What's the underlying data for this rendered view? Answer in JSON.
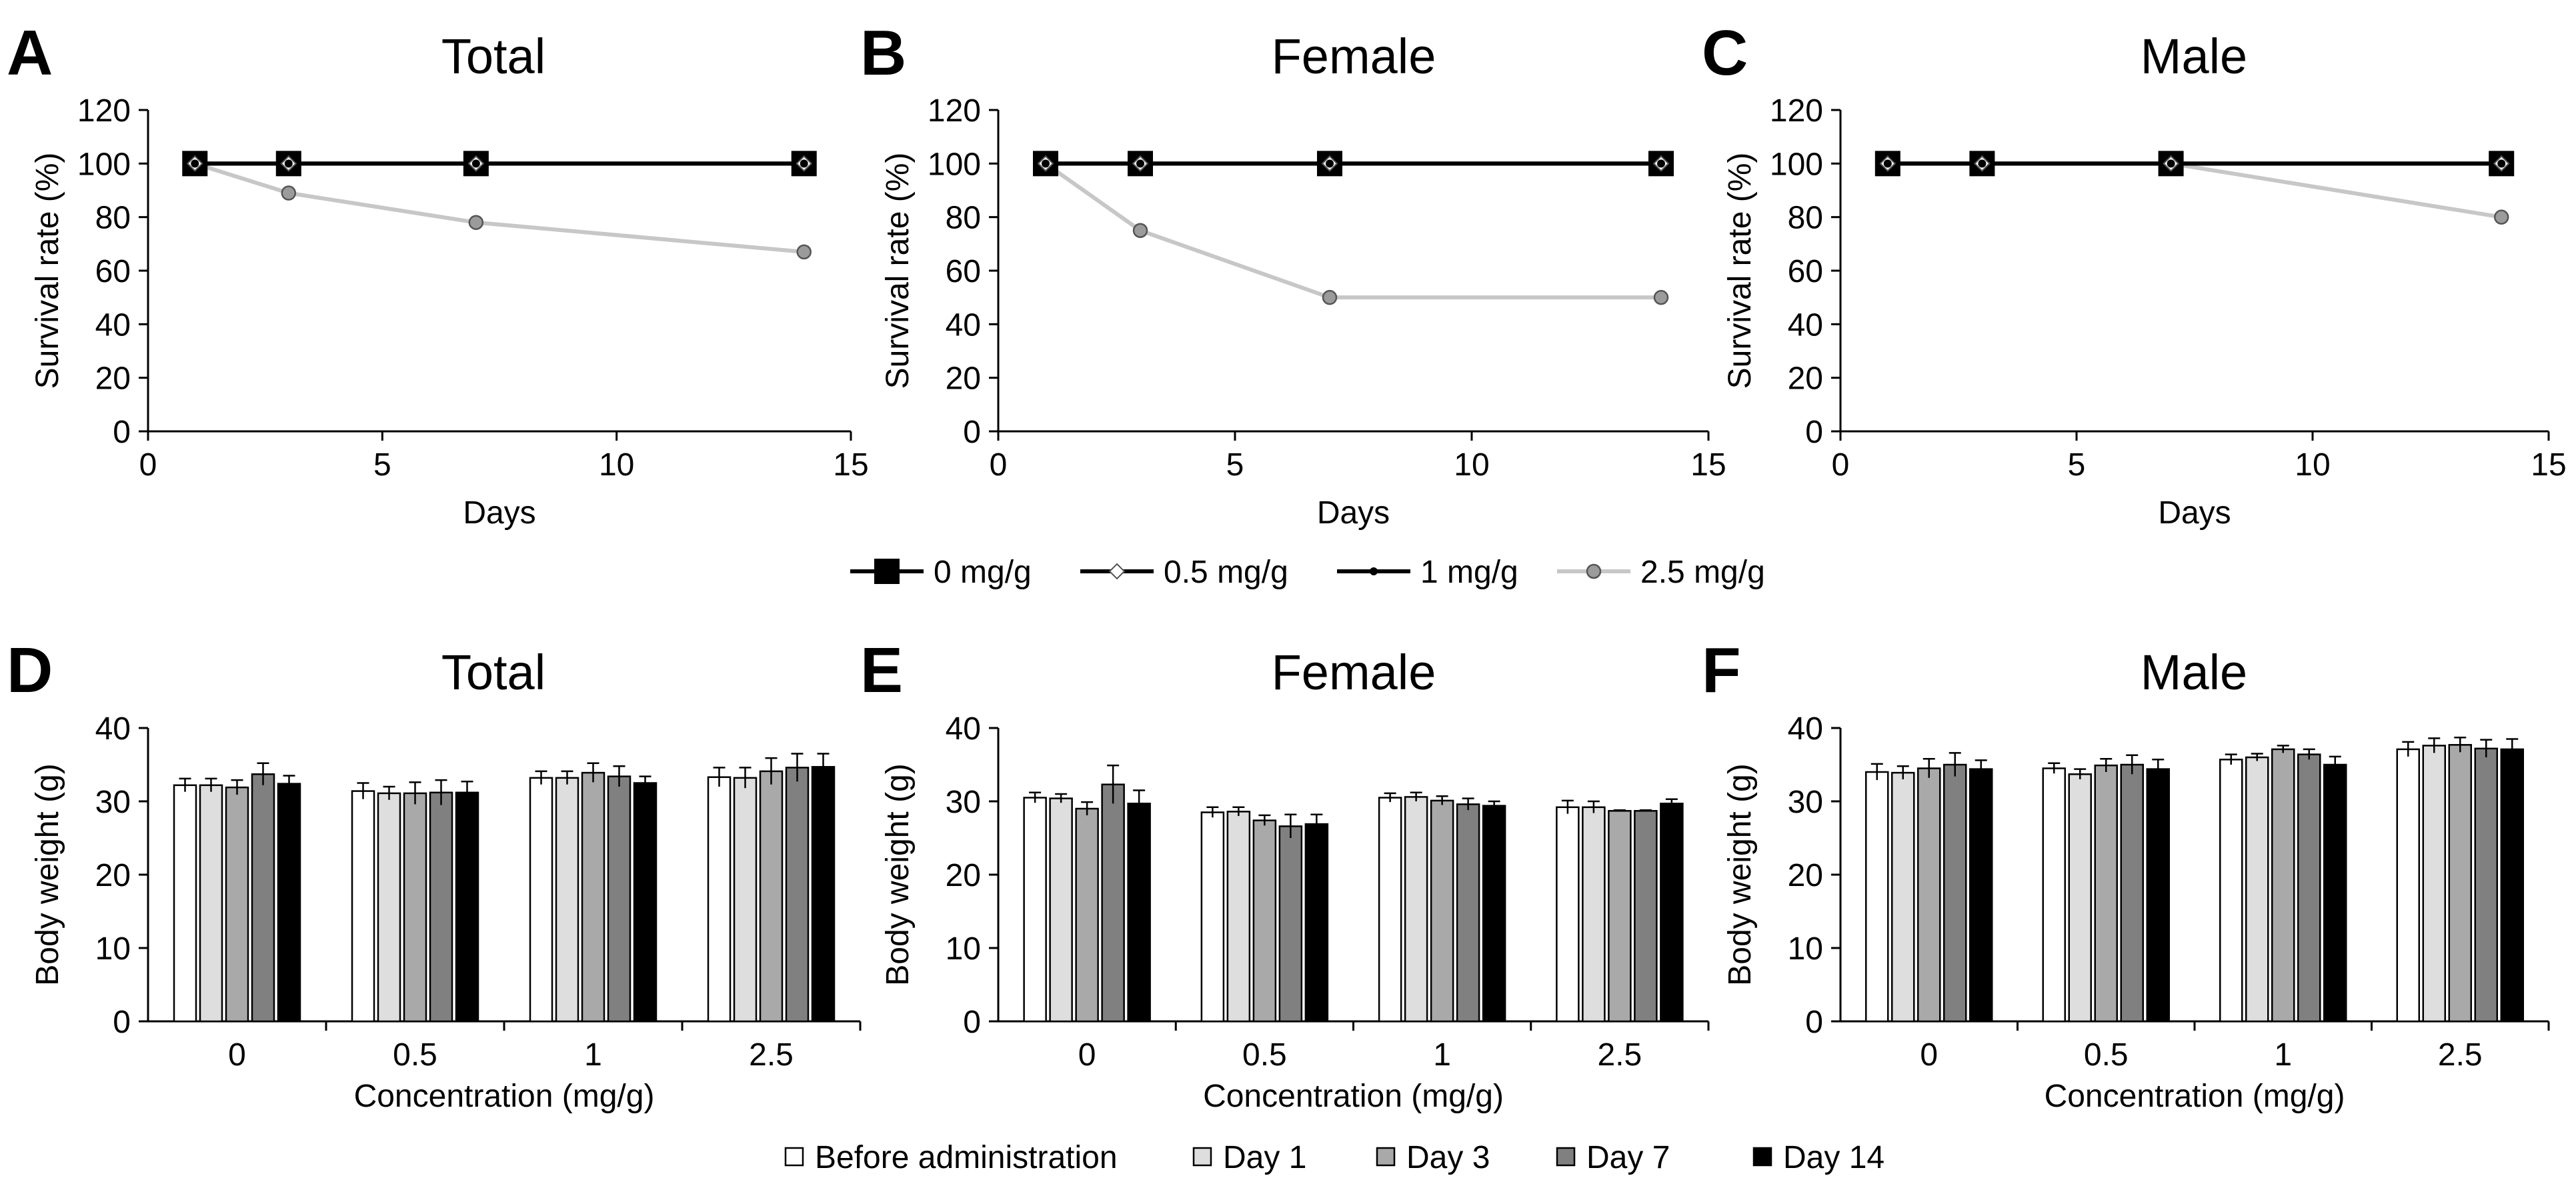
{
  "chart_data": [
    {
      "panel": "A",
      "type": "line",
      "title": "Total",
      "xlabel": "Days",
      "ylabel": "Survival rate (%)",
      "xlim": [
        0,
        15
      ],
      "ylim": [
        0,
        120
      ],
      "xticks": [
        0,
        5,
        10,
        15
      ],
      "yticks": [
        0,
        20,
        40,
        60,
        80,
        100,
        120
      ],
      "x": [
        1,
        3,
        7,
        14
      ],
      "series": [
        {
          "name": "0 mg/g",
          "values": [
            100,
            100,
            100,
            100
          ]
        },
        {
          "name": "0.5 mg/g",
          "values": [
            100,
            100,
            100,
            100
          ]
        },
        {
          "name": "1 mg/g",
          "values": [
            100,
            100,
            100,
            100
          ]
        },
        {
          "name": "2.5 mg/g",
          "values": [
            100,
            89,
            78,
            67
          ]
        }
      ]
    },
    {
      "panel": "B",
      "type": "line",
      "title": "Female",
      "xlabel": "Days",
      "ylabel": "Survival rate (%)",
      "xlim": [
        0,
        15
      ],
      "ylim": [
        0,
        120
      ],
      "xticks": [
        0,
        5,
        10,
        15
      ],
      "yticks": [
        0,
        20,
        40,
        60,
        80,
        100,
        120
      ],
      "x": [
        1,
        3,
        7,
        14
      ],
      "series": [
        {
          "name": "0 mg/g",
          "values": [
            100,
            100,
            100,
            100
          ]
        },
        {
          "name": "0.5 mg/g",
          "values": [
            100,
            100,
            100,
            100
          ]
        },
        {
          "name": "1 mg/g",
          "values": [
            100,
            100,
            100,
            100
          ]
        },
        {
          "name": "2.5 mg/g",
          "values": [
            100,
            75,
            50,
            50
          ]
        }
      ]
    },
    {
      "panel": "C",
      "type": "line",
      "title": "Male",
      "xlabel": "Days",
      "ylabel": "Survival rate (%)",
      "xlim": [
        0,
        15
      ],
      "ylim": [
        0,
        120
      ],
      "xticks": [
        0,
        5,
        10,
        15
      ],
      "yticks": [
        0,
        20,
        40,
        60,
        80,
        100,
        120
      ],
      "x": [
        1,
        3,
        7,
        14
      ],
      "series": [
        {
          "name": "0 mg/g",
          "values": [
            100,
            100,
            100,
            100
          ]
        },
        {
          "name": "0.5 mg/g",
          "values": [
            100,
            100,
            100,
            100
          ]
        },
        {
          "name": "1 mg/g",
          "values": [
            100,
            100,
            100,
            100
          ]
        },
        {
          "name": "2.5 mg/g",
          "values": [
            100,
            100,
            100,
            80
          ]
        }
      ]
    },
    {
      "panel": "D",
      "type": "bar",
      "title": "Total",
      "xlabel": "Concentration (mg/g)",
      "ylabel": "Body weight (g)",
      "ylim": [
        0,
        40
      ],
      "yticks": [
        0,
        10,
        20,
        30,
        40
      ],
      "categories": [
        "0",
        "0.5",
        "1",
        "2.5"
      ],
      "series": [
        {
          "name": "Before administration",
          "values": [
            32.2,
            31.4,
            33.2,
            33.3
          ],
          "errors": [
            0.9,
            1.1,
            0.9,
            1.3
          ]
        },
        {
          "name": "Day 1",
          "values": [
            32.2,
            31.1,
            33.2,
            33.2
          ],
          "errors": [
            0.9,
            0.9,
            0.9,
            1.4
          ]
        },
        {
          "name": "Day 3",
          "values": [
            31.9,
            31.1,
            33.9,
            34.1
          ],
          "errors": [
            1.0,
            1.5,
            1.3,
            1.8
          ]
        },
        {
          "name": "Day 7",
          "values": [
            33.7,
            31.2,
            33.4,
            34.6
          ],
          "errors": [
            1.5,
            1.7,
            1.4,
            1.9
          ]
        },
        {
          "name": "Day 14",
          "values": [
            32.4,
            31.2,
            32.5,
            34.7
          ],
          "errors": [
            1.1,
            1.5,
            0.9,
            1.8
          ]
        }
      ]
    },
    {
      "panel": "E",
      "type": "bar",
      "title": "Female",
      "xlabel": "Concentration (mg/g)",
      "ylabel": "Body weight (g)",
      "ylim": [
        0,
        40
      ],
      "yticks": [
        0,
        10,
        20,
        30,
        40
      ],
      "categories": [
        "0",
        "0.5",
        "1",
        "2.5"
      ],
      "series": [
        {
          "name": "Before administration",
          "values": [
            30.5,
            28.5,
            30.5,
            29.2
          ],
          "errors": [
            0.7,
            0.7,
            0.6,
            0.9
          ]
        },
        {
          "name": "Day 1",
          "values": [
            30.4,
            28.6,
            30.6,
            29.2
          ],
          "errors": [
            0.6,
            0.6,
            0.6,
            0.8
          ]
        },
        {
          "name": "Day 3",
          "values": [
            29.0,
            27.4,
            30.1,
            28.7
          ],
          "errors": [
            0.9,
            0.7,
            0.6,
            0.1
          ]
        },
        {
          "name": "Day 7",
          "values": [
            32.3,
            26.6,
            29.6,
            28.7
          ],
          "errors": [
            2.6,
            1.6,
            0.8,
            0.1
          ]
        },
        {
          "name": "Day 14",
          "values": [
            29.7,
            26.9,
            29.4,
            29.7
          ],
          "errors": [
            1.8,
            1.3,
            0.6,
            0.6
          ]
        }
      ]
    },
    {
      "panel": "F",
      "type": "bar",
      "title": "Male",
      "xlabel": "Concentration (mg/g)",
      "ylabel": "Body weight (g)",
      "ylim": [
        0,
        40
      ],
      "yticks": [
        0,
        10,
        20,
        30,
        40
      ],
      "categories": [
        "0",
        "0.5",
        "1",
        "2.5"
      ],
      "series": [
        {
          "name": "Before administration",
          "values": [
            34.0,
            34.5,
            35.7,
            37.1
          ],
          "errors": [
            1.1,
            0.7,
            0.7,
            1.0
          ]
        },
        {
          "name": "Day 1",
          "values": [
            33.9,
            33.7,
            36.0,
            37.6
          ],
          "errors": [
            0.9,
            0.7,
            0.5,
            1.0
          ]
        },
        {
          "name": "Day 3",
          "values": [
            34.5,
            34.9,
            37.1,
            37.7
          ],
          "errors": [
            1.3,
            0.9,
            0.5,
            1.0
          ]
        },
        {
          "name": "Day 7",
          "values": [
            35.0,
            35.0,
            36.4,
            37.2
          ],
          "errors": [
            1.6,
            1.3,
            0.7,
            1.2
          ]
        },
        {
          "name": "Day 14",
          "values": [
            34.4,
            34.4,
            35.0,
            37.1
          ],
          "errors": [
            1.2,
            1.3,
            1.1,
            1.4
          ]
        }
      ]
    }
  ],
  "legends": {
    "line": [
      "0 mg/g",
      "0.5 mg/g",
      "1 mg/g",
      "2.5 mg/g"
    ],
    "bar": [
      "Before administration",
      "Day 1",
      "Day 3",
      "Day 7",
      "Day 14"
    ]
  },
  "colors": {
    "axis": "#000000",
    "line_dark": "#000000",
    "line_light": "#c7c7c7",
    "marker_circle_fill": "#9b9b9b",
    "marker_diamond_fill": "#ffffff",
    "bar_fills": [
      "#ffffff",
      "#dedede",
      "#a9a9a9",
      "#808080",
      "#000000"
    ],
    "bar_stroke": "#000000"
  }
}
